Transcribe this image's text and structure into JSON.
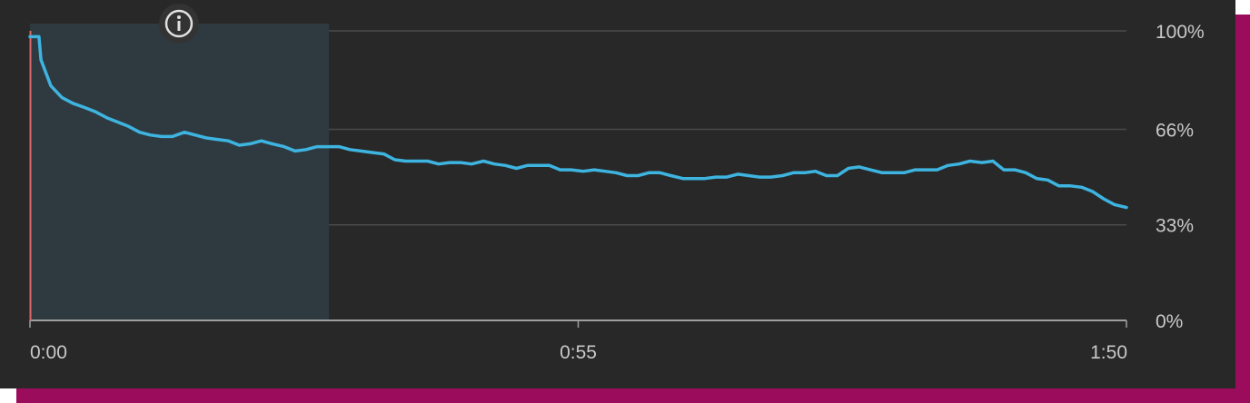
{
  "colors": {
    "background": "#282828",
    "frame_accent": "#9b0d5c",
    "line": "#3eb4e0",
    "highlight_region": "#2f3a40",
    "gridline": "#4a4a4a",
    "axis": "#9e9e9e",
    "marker": "#e06666",
    "label": "#c9c9c9"
  },
  "icons": {
    "info": "info-icon"
  },
  "chart_data": {
    "type": "line",
    "title": "",
    "xlabel": "",
    "ylabel": "",
    "x_unit": "seconds",
    "xlim": [
      0,
      110
    ],
    "ylim": [
      0,
      100
    ],
    "x_tick_labels": [
      {
        "x": 0,
        "label": "0:00"
      },
      {
        "x": 55,
        "label": "0:55"
      },
      {
        "x": 110,
        "label": "1:50"
      }
    ],
    "y_tick_labels": [
      {
        "y": 100,
        "label": "100%"
      },
      {
        "y": 66,
        "label": "66%"
      },
      {
        "y": 33,
        "label": "33%"
      },
      {
        "y": 0,
        "label": "0%"
      }
    ],
    "grid": true,
    "legend": "none",
    "highlight_range": [
      0,
      30
    ],
    "marker_x": 0,
    "series": [
      {
        "x": [
          0,
          0.9,
          1.1,
          2.1,
          3.2,
          4.3,
          5.5,
          6.6,
          7.7,
          8.8,
          9.9,
          11,
          12.1,
          13.2,
          14.3,
          15.5,
          16.6,
          17.7,
          18.8,
          19.9,
          21,
          22.1,
          23.2,
          24.3,
          25.5,
          26.6,
          27.7,
          28.8,
          29.9,
          31,
          32.1,
          33.2,
          34.3,
          35.5,
          36.6,
          37.7,
          38.8,
          39.9,
          41,
          42.1,
          43.2,
          44.3,
          45.5,
          46.6,
          47.7,
          48.8,
          49.9,
          51,
          52.1,
          53.2,
          54.3,
          55.5,
          56.6,
          57.7,
          58.8,
          59.9,
          61,
          62.1,
          63.2,
          64.3,
          65.5,
          66.6,
          67.7,
          68.8,
          69.9,
          71,
          72.1,
          73.2,
          74.3,
          75.5,
          76.6,
          77.7,
          78.8,
          79.9,
          81,
          82.1,
          83.2,
          84.3,
          85.5,
          86.6,
          87.7,
          88.8,
          89.9,
          91,
          92.1,
          93.2,
          94.3,
          95.5,
          96.6,
          97.7,
          98.8,
          99.9,
          101,
          102.1,
          103.2,
          104.3,
          105.5,
          106.6,
          107.7,
          108.8,
          110
        ],
        "y": [
          98,
          98,
          90,
          81,
          77,
          75,
          73.5,
          72,
          70,
          68.5,
          67,
          65,
          64,
          63.5,
          63.5,
          65,
          64,
          63,
          62.5,
          62,
          60.5,
          61,
          62,
          61,
          60,
          58.5,
          59,
          60,
          60,
          60,
          59,
          58.5,
          58,
          57.5,
          55.5,
          55,
          55,
          55,
          54,
          54.5,
          54.5,
          54,
          55,
          54,
          53.5,
          52.5,
          53.5,
          53.5,
          53.5,
          52,
          52,
          51.5,
          52,
          51.5,
          51,
          50,
          50,
          51,
          51,
          50,
          49,
          49,
          49,
          49.5,
          49.5,
          50.5,
          50,
          49.5,
          49.5,
          50,
          51,
          51,
          51.5,
          50,
          50,
          52.5,
          53,
          52,
          51,
          51,
          51,
          52,
          52,
          52,
          53.5,
          54,
          55,
          54.5,
          55,
          52,
          52,
          51,
          49,
          48.5,
          46.5,
          46.5,
          46,
          44.5,
          42,
          40,
          39
        ]
      }
    ]
  }
}
